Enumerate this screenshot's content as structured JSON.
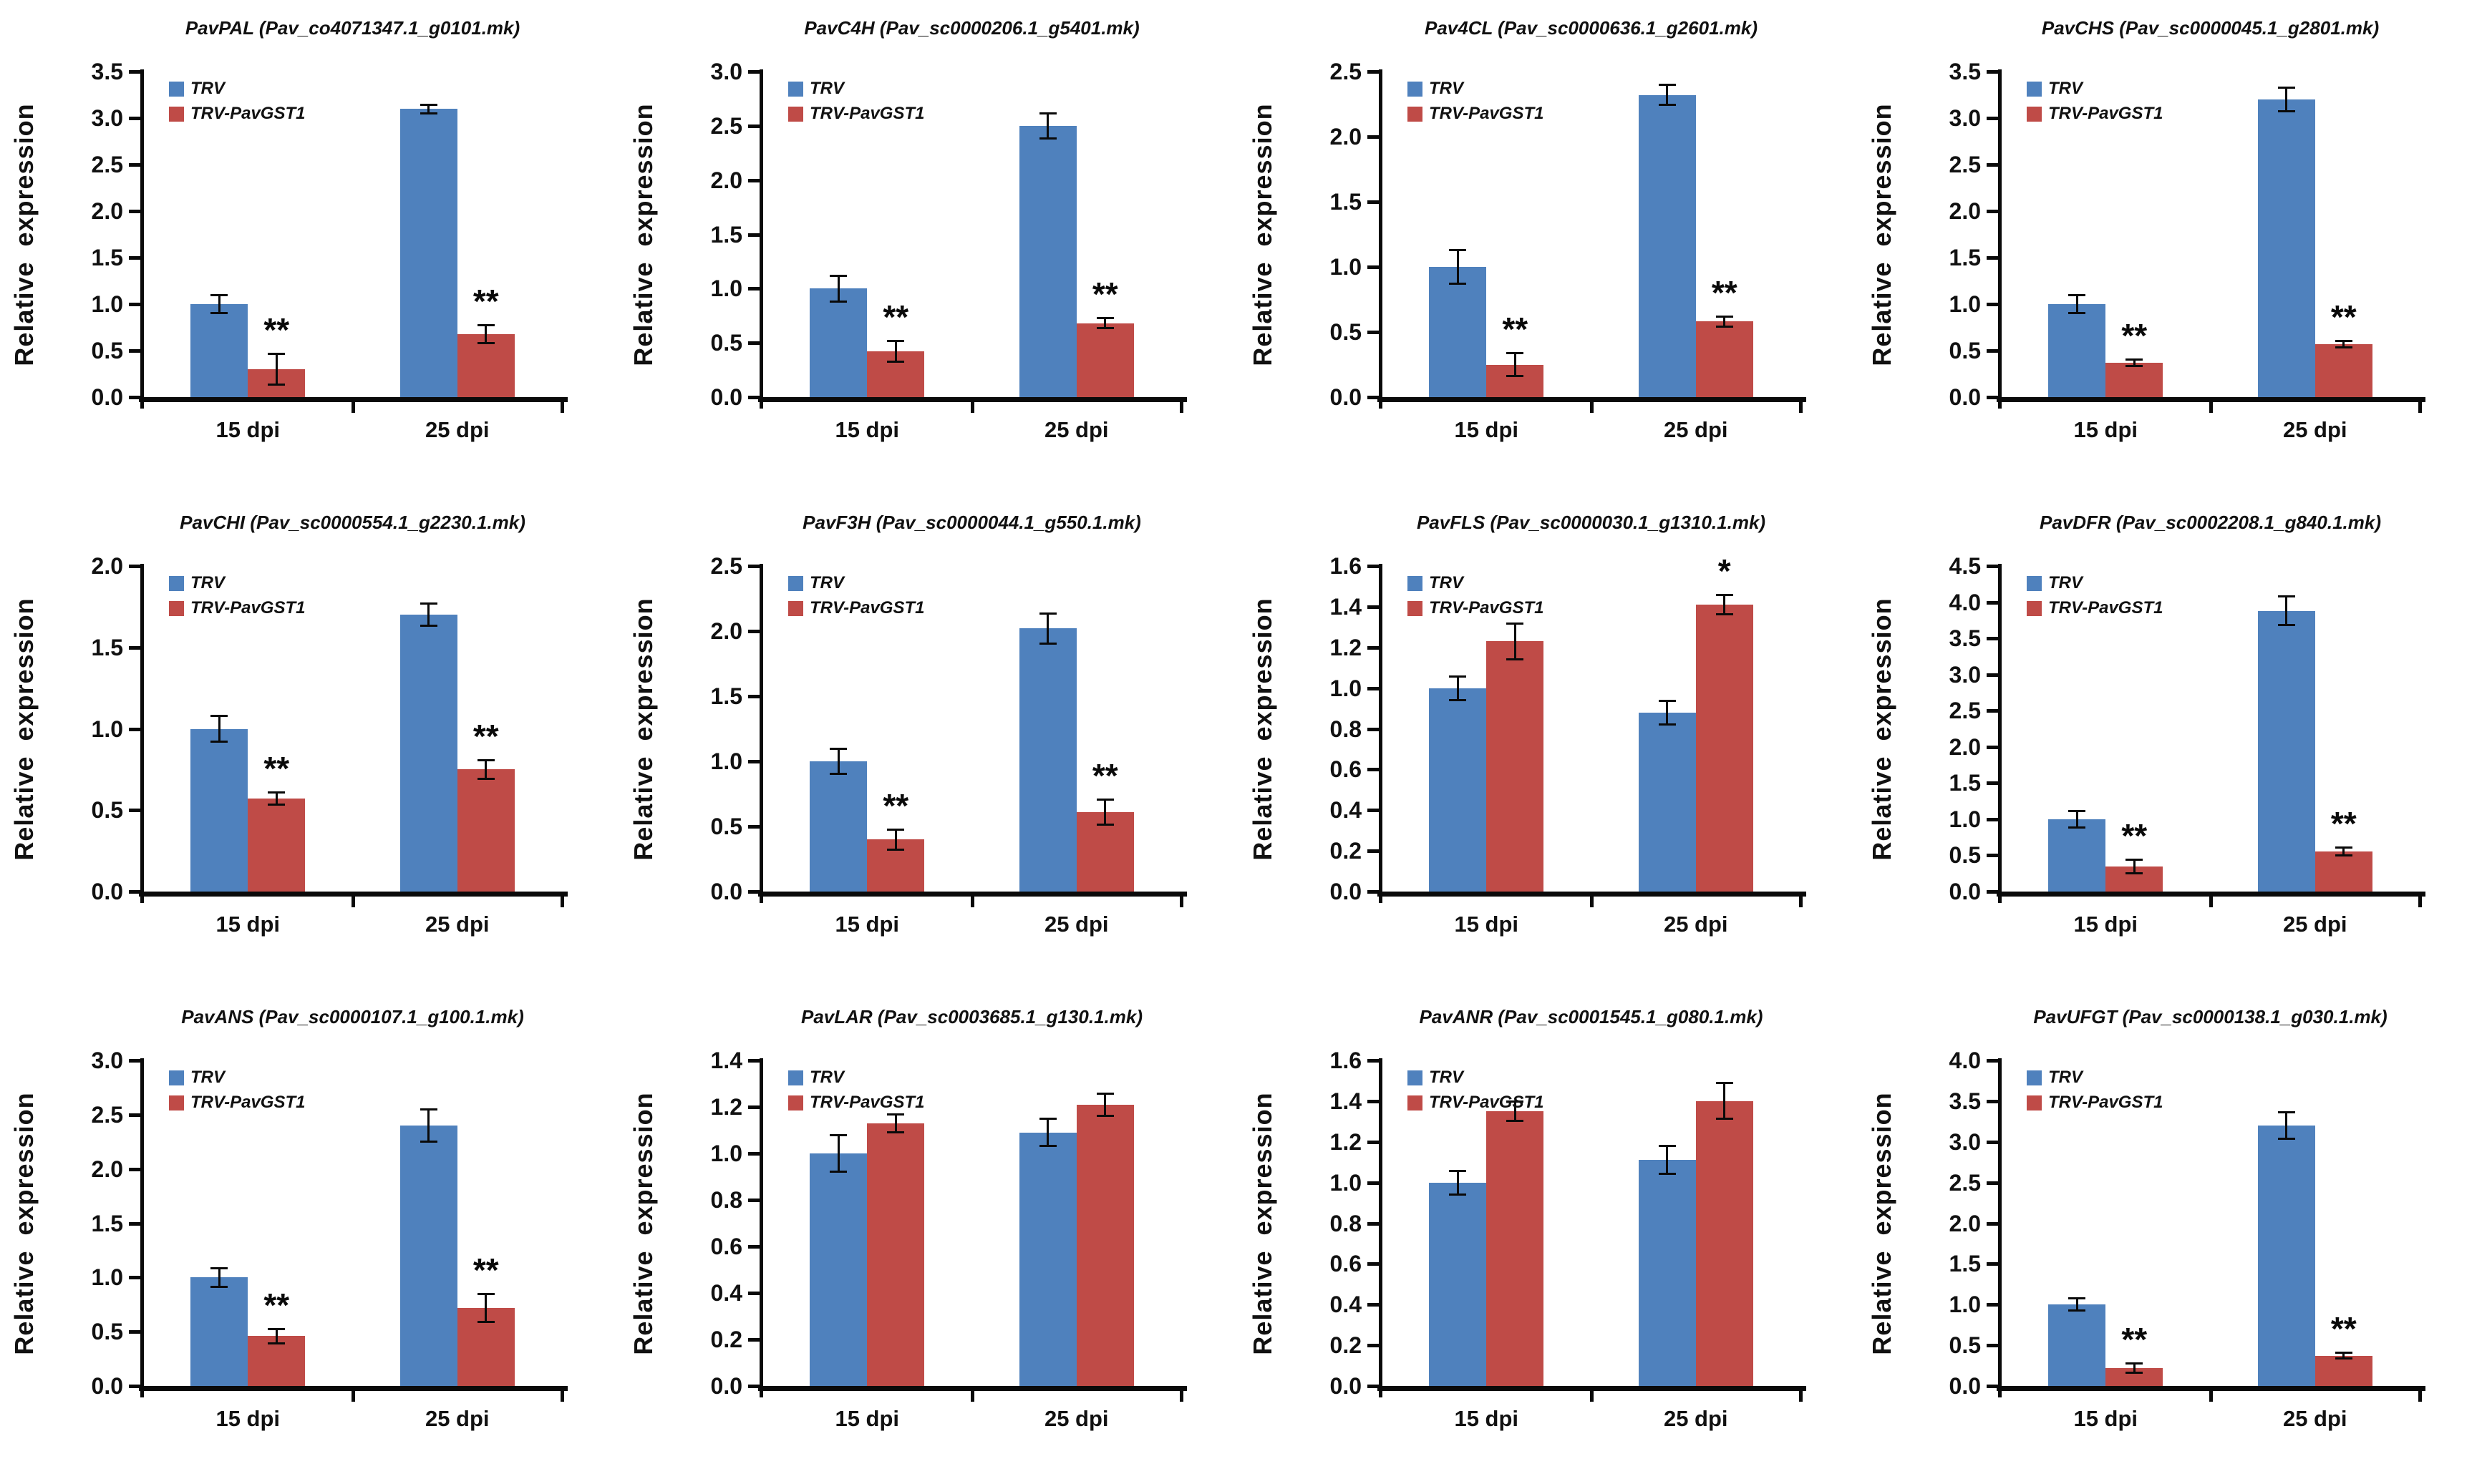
{
  "figure": {
    "ylabel": "Relative expression",
    "categories": [
      "15 dpi",
      "25 dpi"
    ],
    "legend": [
      {
        "label": "TRV",
        "color": "#4F81BD"
      },
      {
        "label": "TRV-PavGST1",
        "color": "#BF4B47"
      }
    ],
    "significance_symbols": {
      "high": "**",
      "low": "*"
    }
  },
  "colors": {
    "blue_series": "#4F81BD",
    "red_series": "#BF4B47",
    "axis": "#0a0a0a",
    "text": "#111111",
    "background": "#ffffff"
  },
  "chart_data": [
    {
      "type": "bar",
      "title": "PavPAL (Pav_co4071347.1_g0101.mk)",
      "xlabel": "",
      "ylabel": "Relative expression",
      "categories": [
        "15 dpi",
        "25 dpi"
      ],
      "ylim": [
        0,
        3.5
      ],
      "ytick_step": 0.5,
      "grid": false,
      "legend_position": "top-left",
      "series": [
        {
          "name": "TRV",
          "color": "#4F81BD",
          "values": [
            1.0,
            3.1
          ],
          "errors": [
            0.1,
            0.05
          ]
        },
        {
          "name": "TRV-PavGST1",
          "color": "#BF4B47",
          "values": [
            0.3,
            0.68
          ],
          "errors": [
            0.17,
            0.1
          ]
        }
      ],
      "significance": [
        "**",
        "**"
      ]
    },
    {
      "type": "bar",
      "title": "PavC4H (Pav_sc0000206.1_g5401.mk)",
      "xlabel": "",
      "ylabel": "Relative expression",
      "categories": [
        "15 dpi",
        "25 dpi"
      ],
      "ylim": [
        0,
        3.0
      ],
      "ytick_step": 0.5,
      "grid": false,
      "legend_position": "top-left",
      "series": [
        {
          "name": "TRV",
          "color": "#4F81BD",
          "values": [
            1.0,
            2.5
          ],
          "errors": [
            0.12,
            0.12
          ]
        },
        {
          "name": "TRV-PavGST1",
          "color": "#BF4B47",
          "values": [
            0.42,
            0.68
          ],
          "errors": [
            0.1,
            0.05
          ]
        }
      ],
      "significance": [
        "**",
        "**"
      ]
    },
    {
      "type": "bar",
      "title": "Pav4CL (Pav_sc0000636.1_g2601.mk)",
      "xlabel": "",
      "ylabel": "Relative expression",
      "categories": [
        "15 dpi",
        "25 dpi"
      ],
      "ylim": [
        0,
        2.5
      ],
      "ytick_step": 0.5,
      "grid": false,
      "legend_position": "top-left",
      "series": [
        {
          "name": "TRV",
          "color": "#4F81BD",
          "values": [
            1.0,
            2.32
          ],
          "errors": [
            0.13,
            0.08
          ]
        },
        {
          "name": "TRV-PavGST1",
          "color": "#BF4B47",
          "values": [
            0.25,
            0.58
          ],
          "errors": [
            0.09,
            0.04
          ]
        }
      ],
      "significance": [
        "**",
        "**"
      ]
    },
    {
      "type": "bar",
      "title": "PavCHS (Pav_sc0000045.1_g2801.mk)",
      "xlabel": "",
      "ylabel": "Relative expression",
      "categories": [
        "15 dpi",
        "25 dpi"
      ],
      "ylim": [
        0,
        3.5
      ],
      "ytick_step": 0.5,
      "grid": false,
      "legend_position": "top-left",
      "series": [
        {
          "name": "TRV",
          "color": "#4F81BD",
          "values": [
            1.0,
            3.2
          ],
          "errors": [
            0.1,
            0.13
          ]
        },
        {
          "name": "TRV-PavGST1",
          "color": "#BF4B47",
          "values": [
            0.37,
            0.57
          ],
          "errors": [
            0.04,
            0.04
          ]
        }
      ],
      "significance": [
        "**",
        "**"
      ]
    },
    {
      "type": "bar",
      "title": "PavCHI (Pav_sc0000554.1_g2230.1.mk)",
      "xlabel": "",
      "ylabel": "Relative expression",
      "categories": [
        "15 dpi",
        "25 dpi"
      ],
      "ylim": [
        0,
        2.0
      ],
      "ytick_step": 0.5,
      "grid": false,
      "legend_position": "top-left",
      "series": [
        {
          "name": "TRV",
          "color": "#4F81BD",
          "values": [
            1.0,
            1.7
          ],
          "errors": [
            0.08,
            0.07
          ]
        },
        {
          "name": "TRV-PavGST1",
          "color": "#BF4B47",
          "values": [
            0.57,
            0.75
          ],
          "errors": [
            0.04,
            0.06
          ]
        }
      ],
      "significance": [
        "**",
        "**"
      ]
    },
    {
      "type": "bar",
      "title": "PavF3H (Pav_sc0000044.1_g550.1.mk)",
      "xlabel": "",
      "ylabel": "Relative expression",
      "categories": [
        "15 dpi",
        "25 dpi"
      ],
      "ylim": [
        0,
        2.5
      ],
      "ytick_step": 0.5,
      "grid": false,
      "legend_position": "top-left",
      "series": [
        {
          "name": "TRV",
          "color": "#4F81BD",
          "values": [
            1.0,
            2.02
          ],
          "errors": [
            0.1,
            0.12
          ]
        },
        {
          "name": "TRV-PavGST1",
          "color": "#BF4B47",
          "values": [
            0.4,
            0.61
          ],
          "errors": [
            0.08,
            0.1
          ]
        }
      ],
      "significance": [
        "**",
        "**"
      ]
    },
    {
      "type": "bar",
      "title": "PavFLS (Pav_sc0000030.1_g1310.1.mk)",
      "xlabel": "",
      "ylabel": "Relative expression",
      "categories": [
        "15 dpi",
        "25 dpi"
      ],
      "ylim": [
        0,
        1.6
      ],
      "ytick_step": 0.2,
      "grid": false,
      "legend_position": "top-left",
      "series": [
        {
          "name": "TRV",
          "color": "#4F81BD",
          "values": [
            1.0,
            0.88
          ],
          "errors": [
            0.06,
            0.06
          ]
        },
        {
          "name": "TRV-PavGST1",
          "color": "#BF4B47",
          "values": [
            1.23,
            1.41
          ],
          "errors": [
            0.09,
            0.05
          ]
        }
      ],
      "significance": [
        "",
        "*"
      ]
    },
    {
      "type": "bar",
      "title": "PavDFR (Pav_sc0002208.1_g840.1.mk)",
      "xlabel": "",
      "ylabel": "Relative expression",
      "categories": [
        "15 dpi",
        "25 dpi"
      ],
      "ylim": [
        0,
        4.5
      ],
      "ytick_step": 0.5,
      "grid": false,
      "legend_position": "top-left",
      "series": [
        {
          "name": "TRV",
          "color": "#4F81BD",
          "values": [
            1.0,
            3.88
          ],
          "errors": [
            0.12,
            0.2
          ]
        },
        {
          "name": "TRV-PavGST1",
          "color": "#BF4B47",
          "values": [
            0.35,
            0.55
          ],
          "errors": [
            0.1,
            0.06
          ]
        }
      ],
      "significance": [
        "**",
        "**"
      ]
    },
    {
      "type": "bar",
      "title": "PavANS (Pav_sc0000107.1_g100.1.mk)",
      "xlabel": "",
      "ylabel": "Relative expression",
      "categories": [
        "15 dpi",
        "25 dpi"
      ],
      "ylim": [
        0,
        3.0
      ],
      "ytick_step": 0.5,
      "grid": false,
      "legend_position": "top-left",
      "series": [
        {
          "name": "TRV",
          "color": "#4F81BD",
          "values": [
            1.0,
            2.4
          ],
          "errors": [
            0.09,
            0.15
          ]
        },
        {
          "name": "TRV-PavGST1",
          "color": "#BF4B47",
          "values": [
            0.46,
            0.72
          ],
          "errors": [
            0.07,
            0.13
          ]
        }
      ],
      "significance": [
        "**",
        "**"
      ]
    },
    {
      "type": "bar",
      "title": "PavLAR (Pav_sc0003685.1_g130.1.mk)",
      "xlabel": "",
      "ylabel": "Relative expression",
      "categories": [
        "15 dpi",
        "25 dpi"
      ],
      "ylim": [
        0,
        1.4
      ],
      "ytick_step": 0.2,
      "grid": false,
      "legend_position": "top-left",
      "series": [
        {
          "name": "TRV",
          "color": "#4F81BD",
          "values": [
            1.0,
            1.09
          ],
          "errors": [
            0.08,
            0.06
          ]
        },
        {
          "name": "TRV-PavGST1",
          "color": "#BF4B47",
          "values": [
            1.13,
            1.21
          ],
          "errors": [
            0.04,
            0.05
          ]
        }
      ],
      "significance": [
        "",
        ""
      ]
    },
    {
      "type": "bar",
      "title": "PavANR (Pav_sc0001545.1_g080.1.mk)",
      "xlabel": "",
      "ylabel": "Relative expression",
      "categories": [
        "15 dpi",
        "25 dpi"
      ],
      "ylim": [
        0,
        1.6
      ],
      "ytick_step": 0.2,
      "grid": false,
      "legend_position": "top-left",
      "series": [
        {
          "name": "TRV",
          "color": "#4F81BD",
          "values": [
            1.0,
            1.11
          ],
          "errors": [
            0.06,
            0.07
          ]
        },
        {
          "name": "TRV-PavGST1",
          "color": "#BF4B47",
          "values": [
            1.35,
            1.4
          ],
          "errors": [
            0.05,
            0.09
          ]
        }
      ],
      "significance": [
        "",
        ""
      ]
    },
    {
      "type": "bar",
      "title": "PavUFGT (Pav_sc0000138.1_g030.1.mk)",
      "xlabel": "",
      "ylabel": "Relative expression",
      "categories": [
        "15 dpi",
        "25 dpi"
      ],
      "ylim": [
        0,
        4.0
      ],
      "ytick_step": 0.5,
      "grid": false,
      "legend_position": "top-left",
      "series": [
        {
          "name": "TRV",
          "color": "#4F81BD",
          "values": [
            1.0,
            3.2
          ],
          "errors": [
            0.08,
            0.17
          ]
        },
        {
          "name": "TRV-PavGST1",
          "color": "#BF4B47",
          "values": [
            0.22,
            0.37
          ],
          "errors": [
            0.06,
            0.04
          ]
        }
      ],
      "significance": [
        "**",
        "**"
      ]
    }
  ]
}
